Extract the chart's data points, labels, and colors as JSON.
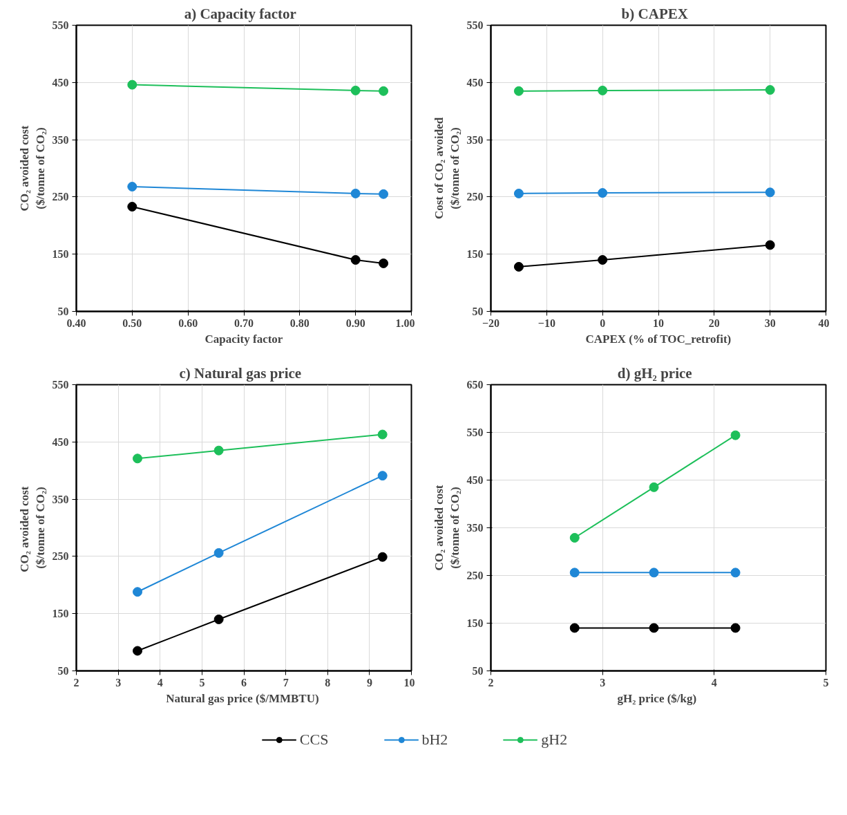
{
  "chart_data": [
    {
      "type": "line",
      "title": "a)   Capacity factor",
      "xlabel": "Capacity factor",
      "ylabel": "CO₂ avoided cost\n($/tonne of CO₂)",
      "x": [
        0.5,
        0.9,
        0.95
      ],
      "series": [
        {
          "color": "#000000",
          "values": [
            233,
            140,
            134
          ]
        },
        {
          "color": "#1f87d6",
          "values": [
            268,
            256,
            255
          ]
        },
        {
          "color": "#1dbf5a",
          "values": [
            446,
            436,
            435
          ]
        }
      ],
      "xlim": [
        0.4,
        1.0
      ],
      "xticks": [
        {
          "value": 0.4,
          "label": "0.40"
        },
        {
          "value": 0.5,
          "label": "0.50"
        },
        {
          "value": 0.6,
          "label": "0.60"
        },
        {
          "value": 0.7,
          "label": "0.70"
        },
        {
          "value": 0.8,
          "label": "0.80"
        },
        {
          "value": 0.9,
          "label": "0.90"
        },
        {
          "value": 1.0,
          "label": "1.00"
        }
      ],
      "ylim": [
        50,
        550
      ],
      "yticks": [
        50,
        150,
        250,
        350,
        450,
        550
      ],
      "grid": true,
      "marker": "circle",
      "line_style": "solid"
    },
    {
      "type": "line",
      "title": "b)   CAPEX",
      "xlabel": "CAPEX (% of TOC_retrofit)",
      "ylabel": "Cost of CO₂ avoided\n($/tonne of CO₂)",
      "x": [
        -15,
        0,
        30
      ],
      "series": [
        {
          "color": "#000000",
          "values": [
            128,
            140,
            166
          ]
        },
        {
          "color": "#1f87d6",
          "values": [
            256,
            257,
            258
          ]
        },
        {
          "color": "#1dbf5a",
          "values": [
            435,
            436,
            437
          ]
        }
      ],
      "xlim": [
        -20,
        40
      ],
      "xticks": [
        -20,
        -10,
        0,
        10,
        20,
        30,
        40
      ],
      "ylim": [
        50,
        550
      ],
      "yticks": [
        50,
        150,
        250,
        350,
        450,
        550
      ],
      "grid": true,
      "marker": "circle",
      "line_style": "solid"
    },
    {
      "type": "line",
      "title": "c)   Natural gas price",
      "xlabel": "Natural  gas price ($/MMBTU)",
      "ylabel": "CO₂ avoided  cost\n($/tonne of CO₂)",
      "x": [
        3.46,
        5.4,
        9.31
      ],
      "series": [
        {
          "color": "#000000",
          "values": [
            85,
            140,
            249
          ]
        },
        {
          "color": "#1f87d6",
          "values": [
            188,
            256,
            391
          ]
        },
        {
          "color": "#1dbf5a",
          "values": [
            421,
            435,
            463
          ]
        }
      ],
      "xlim": [
        2,
        10
      ],
      "xticks": [
        2,
        3,
        4,
        5,
        6,
        7,
        8,
        9,
        10
      ],
      "ylim": [
        50,
        550
      ],
      "yticks": [
        50,
        150,
        250,
        350,
        450,
        550
      ],
      "grid": true,
      "marker": "circle",
      "line_style": "solid"
    },
    {
      "type": "line",
      "title": "d)   gH₂ price",
      "xlabel": "gH₂ price  ($/kg)",
      "ylabel": "CO₂ avoided cost\n($/tonne of CO₂)",
      "x": [
        2.75,
        3.46,
        4.19
      ],
      "series": [
        {
          "name": "CCS",
          "color": "#000000",
          "values": [
            140,
            140,
            140
          ]
        },
        {
          "name": "bH2",
          "color": "#1f87d6",
          "values": [
            256,
            256,
            256
          ]
        },
        {
          "name": "gH2",
          "color": "#1dbf5a",
          "values": [
            329,
            435,
            544
          ]
        }
      ],
      "xlim": [
        2,
        5
      ],
      "xticks": [
        2,
        3,
        4,
        5
      ],
      "ylim": [
        50,
        650
      ],
      "yticks": [
        50,
        150,
        250,
        350,
        450,
        550,
        650
      ],
      "grid": true,
      "marker": "circle",
      "line_style": "solid",
      "legend": "bottom"
    }
  ]
}
